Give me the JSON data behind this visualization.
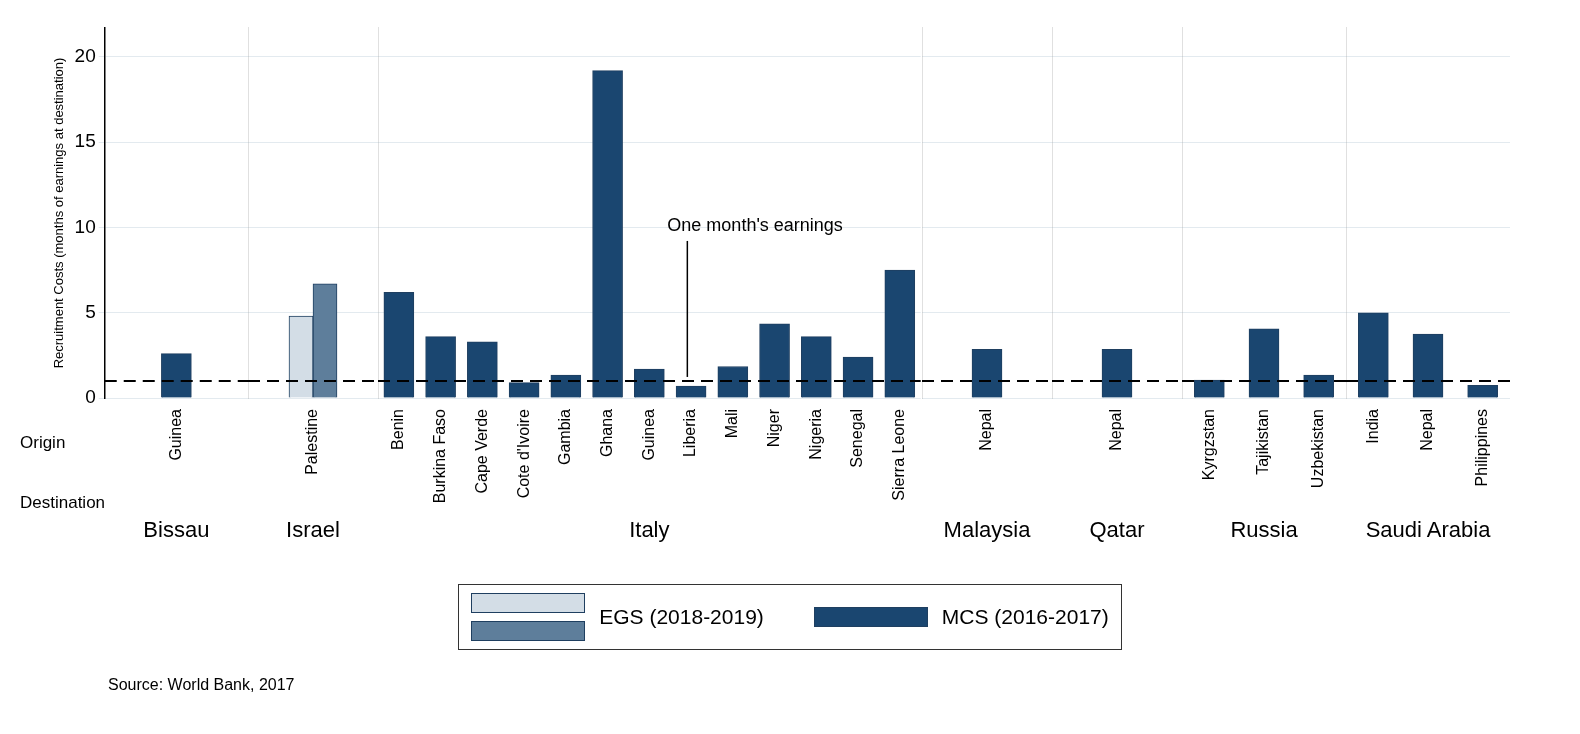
{
  "chart_data": [
    {
      "type": "bar",
      "categories": [
        "Guinea"
      ],
      "series": [
        {
          "name": "MCS (2016-2017)",
          "color": "#1a4670",
          "values": [
            2.6
          ]
        }
      ],
      "xlabel": "Bissau",
      "ylabel": "Recruitment Costs (months of earnings at destination)",
      "ylim": [
        0,
        21.7
      ],
      "yticks": [
        0,
        5,
        10,
        15,
        20
      ],
      "grid": "y",
      "legend": "bottom",
      "ref_lines": [
        {
          "axis": "y",
          "value": 1,
          "line_style": "dashed",
          "color": "#000000"
        }
      ],
      "annotations": [
        "Origin",
        "Destination",
        "Source: World Bank, 2017"
      ]
    },
    {
      "type": "bar",
      "categories": [
        "Palestine"
      ],
      "series": [
        {
          "name": "EGS (2018-2019)",
          "color": "#d3dde6",
          "values": [
            4.8
          ]
        },
        {
          "color": "#5e7e9b",
          "values": [
            6.7
          ]
        }
      ],
      "xlabel": "Israel",
      "ylim": [
        0,
        21.7
      ],
      "yticks": [
        0,
        5,
        10,
        15,
        20
      ],
      "grid": "y",
      "tick_labels": "x",
      "ref_lines": [
        {
          "axis": "y",
          "value": 1,
          "line_style": "dashed",
          "color": "#000000"
        }
      ]
    },
    {
      "type": "bar",
      "categories": [
        "Benin",
        "Burkina Faso",
        "Cape Verde",
        "Cote d'Ivoire",
        "Gambia",
        "Ghana",
        "Guinea",
        "Liberia",
        "Mali",
        "Niger",
        "Nigeria",
        "Senegal",
        "Sierra Leone"
      ],
      "series": [
        {
          "color": "#1a4670",
          "values": [
            6.2,
            3.6,
            3.3,
            0.9,
            1.35,
            19.2,
            1.7,
            0.7,
            1.85,
            4.35,
            3.6,
            2.4,
            7.5
          ]
        }
      ],
      "xlabel": "Italy",
      "ylim": [
        0,
        21.7
      ],
      "yticks": [
        0,
        5,
        10,
        15,
        20
      ],
      "grid": "y",
      "tick_labels": "x",
      "ref_lines": [
        {
          "axis": "y",
          "value": 1,
          "line_style": "dashed",
          "color": "#000000",
          "label": "One month's earnings"
        }
      ]
    },
    {
      "type": "bar",
      "categories": [
        "Nepal"
      ],
      "series": [
        {
          "color": "#1a4670",
          "values": [
            2.85
          ]
        }
      ],
      "xlabel": "Malaysia",
      "ylim": [
        0,
        21.7
      ],
      "yticks": [
        0,
        5,
        10,
        15,
        20
      ],
      "grid": "y",
      "tick_labels": "x",
      "ref_lines": [
        {
          "axis": "y",
          "value": 1,
          "line_style": "dashed",
          "color": "#000000"
        }
      ]
    },
    {
      "type": "bar",
      "categories": [
        "Nepal"
      ],
      "series": [
        {
          "color": "#1a4670",
          "values": [
            2.85
          ]
        }
      ],
      "xlabel": "Qatar",
      "ylim": [
        0,
        21.7
      ],
      "yticks": [
        0,
        5,
        10,
        15,
        20
      ],
      "grid": "y",
      "tick_labels": "x",
      "ref_lines": [
        {
          "axis": "y",
          "value": 1,
          "line_style": "dashed",
          "color": "#000000"
        }
      ]
    },
    {
      "type": "bar",
      "categories": [
        "Kyrgzstan",
        "Tajikistan",
        "Uzbekistan"
      ],
      "series": [
        {
          "color": "#1a4670",
          "values": [
            1.05,
            4.05,
            1.35
          ]
        }
      ],
      "xlabel": "Russia",
      "ylim": [
        0,
        21.7
      ],
      "yticks": [
        0,
        5,
        10,
        15,
        20
      ],
      "grid": "y",
      "tick_labels": "x",
      "ref_lines": [
        {
          "axis": "y",
          "value": 1,
          "line_style": "dashed",
          "color": "#000000"
        }
      ]
    },
    {
      "type": "bar",
      "categories": [
        "India",
        "Nepal",
        "Philippines"
      ],
      "series": [
        {
          "color": "#1a4670",
          "values": [
            5.0,
            3.75,
            0.75
          ]
        }
      ],
      "xlabel": "Saudi Arabia",
      "ylim": [
        0,
        21.7
      ],
      "yticks": [
        0,
        5,
        10,
        15,
        20
      ],
      "grid": "y",
      "tick_labels": "x",
      "ref_lines": [
        {
          "axis": "y",
          "value": 1,
          "line_style": "dashed",
          "color": "#000000"
        }
      ]
    }
  ]
}
